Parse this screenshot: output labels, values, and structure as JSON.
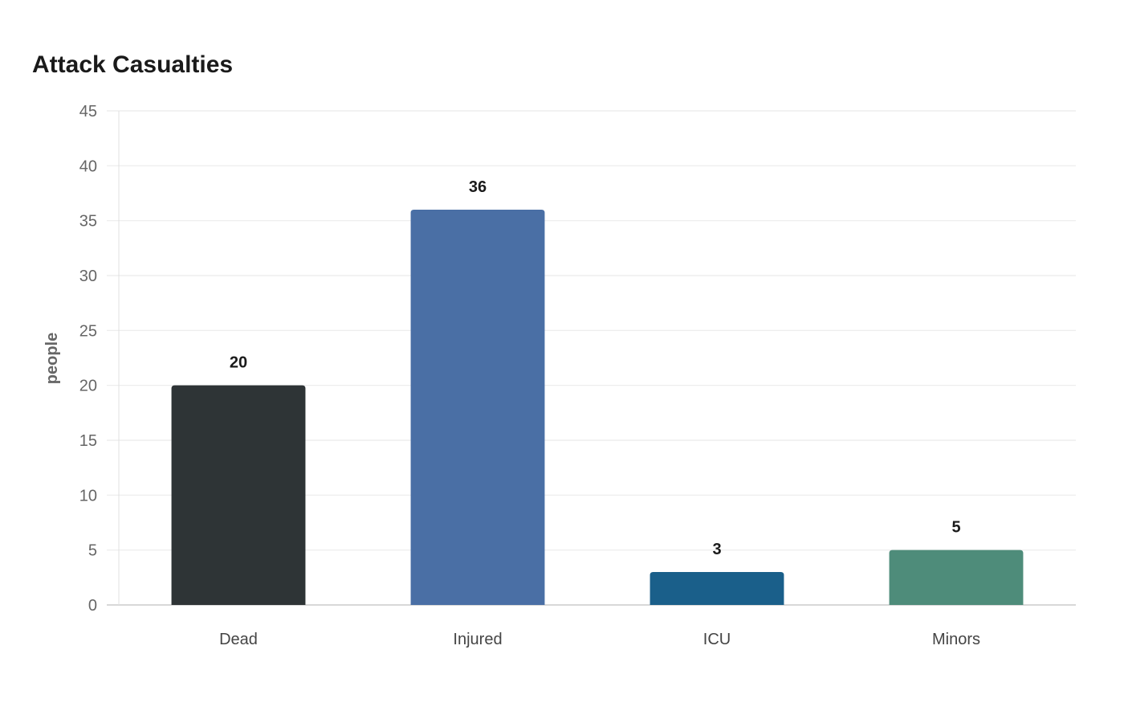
{
  "chart_data": {
    "type": "bar",
    "title": "Attack Casualties",
    "xlabel": "",
    "ylabel": "people",
    "categories": [
      "Dead",
      "Injured",
      "ICU",
      "Minors"
    ],
    "values": [
      20,
      36,
      3,
      5
    ],
    "data_labels": [
      "20",
      "36",
      "3",
      "5"
    ],
    "colors": [
      "#2e3436",
      "#4a6fa5",
      "#1a5f8a",
      "#4e8c7a"
    ],
    "ylim": [
      0,
      45
    ],
    "yticks": [
      0,
      5,
      10,
      15,
      20,
      25,
      30,
      35,
      40,
      45
    ],
    "grid": true,
    "legend": "none"
  }
}
